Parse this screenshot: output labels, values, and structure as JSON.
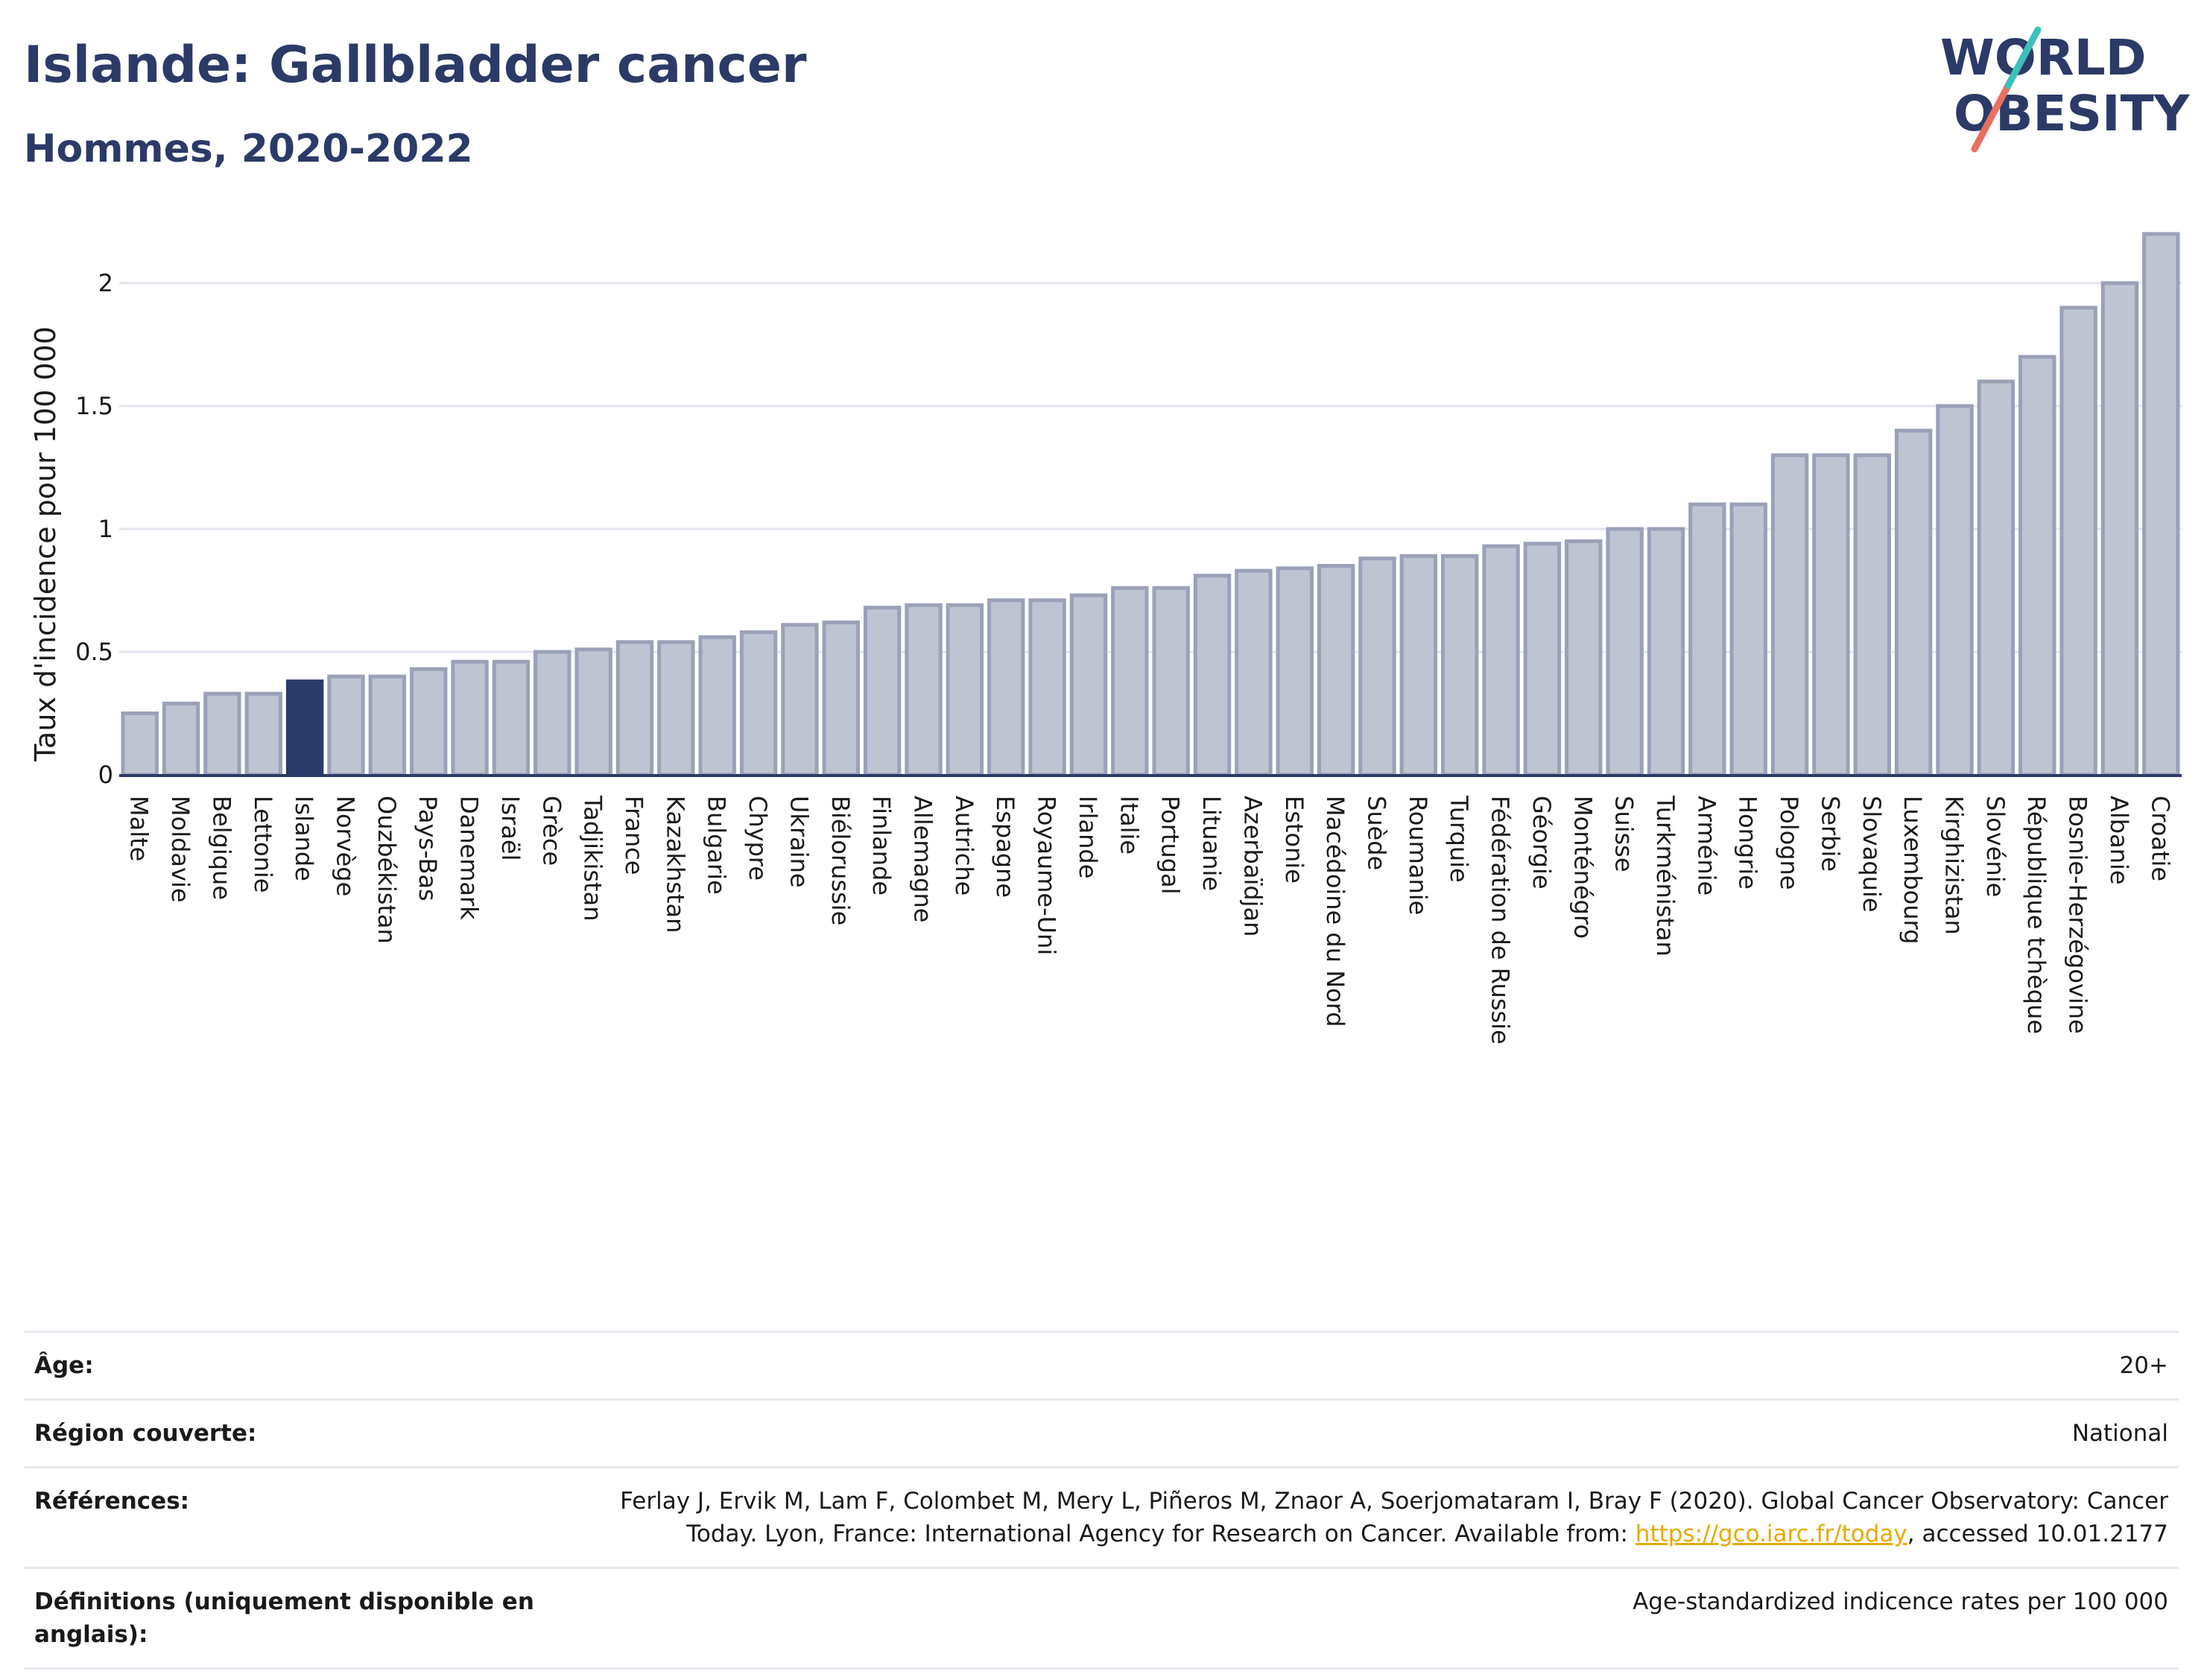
{
  "header": {
    "title": "Islande: Gallbladder cancer",
    "subtitle": "Hommes, 2020-2022"
  },
  "logo": {
    "line1": "WORLD",
    "line2": "OBESITY"
  },
  "colors": {
    "title": "#2b3a67",
    "bar_default": "#bfc4d3",
    "bar_default_stroke": "#9aa1b8",
    "bar_highlight": "#2b3a67",
    "gridline": "#e3e5ec",
    "axis_line": "#2b3a67",
    "logo_teal": "#3cc0b8",
    "logo_coral": "#e8705f",
    "link": "#e8a900"
  },
  "chart_data": {
    "type": "bar",
    "title": "Islande: Gallbladder cancer",
    "subtitle": "Hommes, 2020-2022",
    "ylabel": "Taux d'incidence pour 100 000",
    "xlabel": "",
    "ylim": [
      0,
      2.2
    ],
    "yticks": [
      0,
      0.5,
      1,
      1.5,
      2
    ],
    "ytick_labels": [
      "0",
      "0.5",
      "1",
      "1.5",
      "2"
    ],
    "grid": true,
    "highlight": "Islande",
    "categories": [
      "Malte",
      "Moldavie",
      "Belgique",
      "Lettonie",
      "Islande",
      "Norvège",
      "Ouzbékistan",
      "Pays-Bas",
      "Danemark",
      "Israël",
      "Grèce",
      "Tadjikistan",
      "France",
      "Kazakhstan",
      "Bulgarie",
      "Chypre",
      "Ukraine",
      "Biélorussie",
      "Finlande",
      "Allemagne",
      "Autriche",
      "Espagne",
      "Royaume-Uni",
      "Irlande",
      "Italie",
      "Portugal",
      "Lituanie",
      "Azerbaïdjan",
      "Estonie",
      "Macédoine du Nord",
      "Suède",
      "Roumanie",
      "Turquie",
      "Fédération de Russie",
      "Géorgie",
      "Monténégro",
      "Suisse",
      "Turkménistan",
      "Arménie",
      "Hongrie",
      "Pologne",
      "Serbie",
      "Slovaquie",
      "Luxembourg",
      "Kirghizistan",
      "Slovénie",
      "République tchèque",
      "Bosnie-Herzégovine",
      "Albanie",
      "Croatie"
    ],
    "values": [
      0.25,
      0.29,
      0.33,
      0.33,
      0.38,
      0.4,
      0.4,
      0.43,
      0.46,
      0.46,
      0.5,
      0.51,
      0.54,
      0.54,
      0.56,
      0.58,
      0.61,
      0.62,
      0.68,
      0.69,
      0.69,
      0.71,
      0.71,
      0.73,
      0.76,
      0.76,
      0.81,
      0.83,
      0.84,
      0.85,
      0.88,
      0.89,
      0.89,
      0.93,
      0.94,
      0.95,
      1.0,
      1.0,
      1.1,
      1.1,
      1.3,
      1.3,
      1.3,
      1.4,
      1.5,
      1.6,
      1.7,
      1.9,
      2.0,
      2.2
    ]
  },
  "meta": [
    {
      "key": "Âge:",
      "value": "20+"
    },
    {
      "key": "Région couverte:",
      "value": "National"
    },
    {
      "key": "Références:",
      "value_pre": "Ferlay J, Ervik M, Lam F, Colombet M, Mery L, Piñeros M, Znaor A, Soerjomataram I, Bray F (2020). Global Cancer Observatory: Cancer Today. Lyon, France: International Agency for Research on Cancer. Available from: ",
      "link": "https://gco.iarc.fr/today",
      "value_post": ", accessed 10.01.2177"
    },
    {
      "key": "Définitions (uniquement disponible en anglais):",
      "value": "Age-standardized indicence rates per 100 000"
    }
  ]
}
